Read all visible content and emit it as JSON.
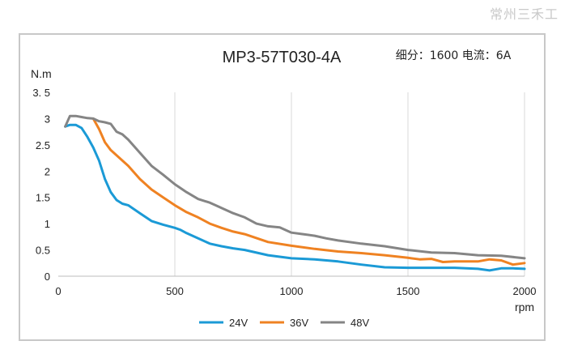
{
  "watermark": "常州三禾工",
  "chart_data": {
    "type": "line",
    "title": "MP3-57T030-4A",
    "subtitle": "细分：1600 电流：6A",
    "xlabel": "rpm",
    "ylabel": "N.m",
    "xlim": [
      0,
      2000
    ],
    "ylim": [
      0,
      3.5
    ],
    "xticks": [
      {
        "v": 0,
        "label": "0"
      },
      {
        "v": 500,
        "label": "500"
      },
      {
        "v": 1000,
        "label": "1000"
      },
      {
        "v": 1500,
        "label": "1500"
      },
      {
        "v": 2000,
        "label": "2000"
      }
    ],
    "yticks": [
      {
        "v": 0,
        "label": "0"
      },
      {
        "v": 0.5,
        "label": "0.5"
      },
      {
        "v": 1,
        "label": "1"
      },
      {
        "v": 1.5,
        "label": "1.5"
      },
      {
        "v": 2,
        "label": "2"
      },
      {
        "v": 2.5,
        "label": "2.5"
      },
      {
        "v": 3,
        "label": "3"
      },
      {
        "v": 3.5,
        "label": "3. 5"
      }
    ],
    "grid": "vertical",
    "legend": "bottom",
    "series": [
      {
        "name": "24V",
        "color": "#1b9ad6",
        "x": [
          30,
          50,
          75,
          100,
          125,
          150,
          175,
          200,
          225,
          250,
          275,
          300,
          350,
          400,
          450,
          500,
          525,
          550,
          600,
          650,
          700,
          750,
          800,
          900,
          1000,
          1100,
          1200,
          1300,
          1400,
          1500,
          1600,
          1700,
          1800,
          1850,
          1900,
          1950,
          2000
        ],
        "y": [
          2.85,
          2.88,
          2.88,
          2.82,
          2.65,
          2.45,
          2.2,
          1.85,
          1.6,
          1.45,
          1.38,
          1.35,
          1.2,
          1.05,
          0.98,
          0.92,
          0.88,
          0.82,
          0.72,
          0.62,
          0.57,
          0.53,
          0.5,
          0.4,
          0.34,
          0.32,
          0.28,
          0.22,
          0.17,
          0.16,
          0.16,
          0.16,
          0.14,
          0.11,
          0.15,
          0.15,
          0.14
        ]
      },
      {
        "name": "36V",
        "color": "#ef8222",
        "x": [
          150,
          175,
          200,
          225,
          250,
          275,
          300,
          350,
          400,
          450,
          500,
          550,
          600,
          650,
          700,
          750,
          800,
          900,
          1000,
          1100,
          1200,
          1300,
          1400,
          1500,
          1550,
          1600,
          1650,
          1700,
          1800,
          1850,
          1900,
          1950,
          2000
        ],
        "y": [
          3.0,
          2.8,
          2.55,
          2.4,
          2.3,
          2.2,
          2.1,
          1.85,
          1.65,
          1.5,
          1.35,
          1.22,
          1.12,
          1.0,
          0.92,
          0.85,
          0.8,
          0.65,
          0.58,
          0.52,
          0.47,
          0.44,
          0.4,
          0.35,
          0.32,
          0.33,
          0.27,
          0.28,
          0.28,
          0.32,
          0.3,
          0.22,
          0.25
        ]
      },
      {
        "name": "48V",
        "color": "#858585",
        "x": [
          30,
          50,
          75,
          100,
          125,
          150,
          175,
          200,
          225,
          250,
          275,
          300,
          350,
          400,
          450,
          500,
          550,
          600,
          650,
          700,
          750,
          800,
          850,
          900,
          950,
          1000,
          1050,
          1100,
          1150,
          1200,
          1300,
          1400,
          1500,
          1600,
          1700,
          1800,
          1900,
          2000
        ],
        "y": [
          2.85,
          3.05,
          3.05,
          3.03,
          3.01,
          3.0,
          2.95,
          2.93,
          2.9,
          2.75,
          2.7,
          2.6,
          2.35,
          2.1,
          1.93,
          1.75,
          1.6,
          1.47,
          1.4,
          1.3,
          1.2,
          1.12,
          1.0,
          0.95,
          0.93,
          0.83,
          0.8,
          0.77,
          0.72,
          0.68,
          0.62,
          0.57,
          0.5,
          0.45,
          0.44,
          0.4,
          0.39,
          0.34
        ]
      }
    ]
  }
}
